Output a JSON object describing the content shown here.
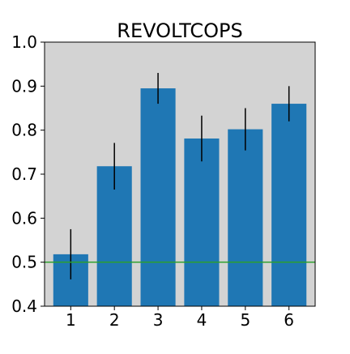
{
  "chart_data": {
    "type": "bar",
    "title": "REVOLTCOPS",
    "xlabel": "",
    "ylabel": "",
    "categories": [
      "1",
      "2",
      "3",
      "4",
      "5",
      "6"
    ],
    "values": [
      0.518,
      0.718,
      0.895,
      0.781,
      0.802,
      0.86
    ],
    "errors": [
      0.057,
      0.053,
      0.035,
      0.052,
      0.048,
      0.04
    ],
    "ylim": [
      0.4,
      1.0
    ],
    "yticks": [
      0.4,
      0.5,
      0.6,
      0.7,
      0.8,
      0.9,
      1.0
    ],
    "ytick_labels": [
      "0.4",
      "0.5",
      "0.6",
      "0.7",
      "0.8",
      "0.9",
      "1.0"
    ],
    "reference_line": 0.5,
    "grid": false,
    "colors": {
      "bar": "#1f77b4",
      "error_bar": "#000000",
      "reference_line": "#2ca02c",
      "plot_background": "#d3d3d3",
      "axes_edge": "#000000"
    }
  }
}
